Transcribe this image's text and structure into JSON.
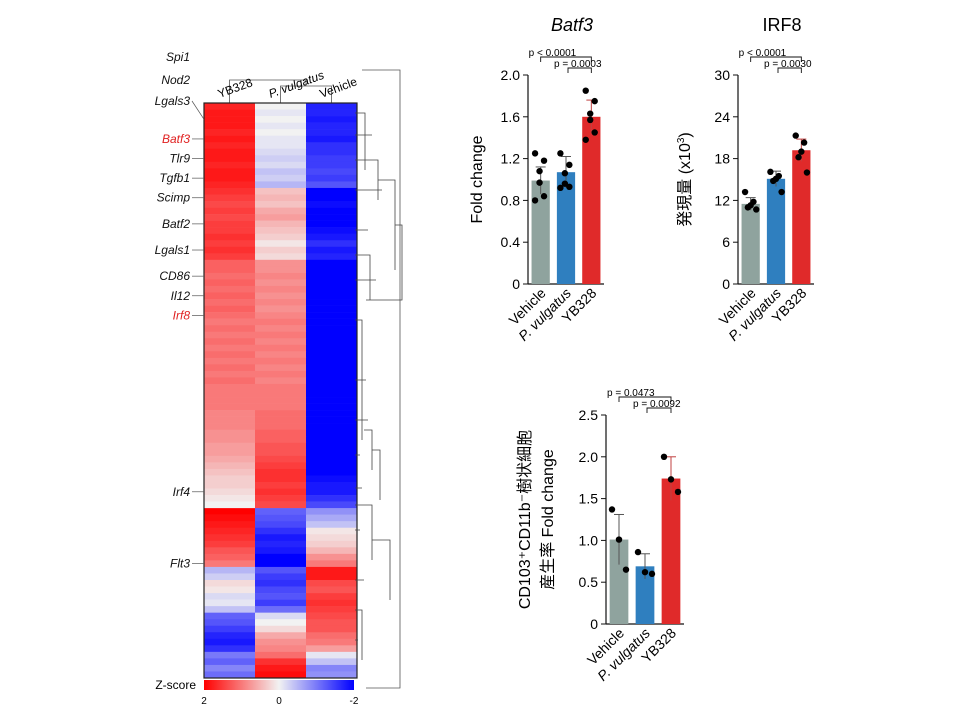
{
  "colors": {
    "vehicle": "#8fa39e",
    "pvulgatus": "#2f7fbf",
    "yb328": "#e02a2a",
    "heat_high": "#ff0000",
    "heat_mid": "#f2f2f2",
    "heat_low": "#0000ff",
    "highlight_gene": "#e02020"
  },
  "chart_data": [
    {
      "type": "heatmap",
      "columns": [
        "YB328",
        "P. vulgatus",
        "Vehicle"
      ],
      "gene_labels": [
        {
          "name": "Spi1",
          "row": 0,
          "highlight": false
        },
        {
          "name": "Nod2",
          "row": 1,
          "highlight": false
        },
        {
          "name": "Lgals3",
          "row": 2,
          "highlight": false
        },
        {
          "name": "Batf3",
          "row": 5,
          "highlight": true
        },
        {
          "name": "Tlr9",
          "row": 8,
          "highlight": false
        },
        {
          "name": "Tgfb1",
          "row": 11,
          "highlight": false
        },
        {
          "name": "Scimp",
          "row": 14,
          "highlight": false
        },
        {
          "name": "Batf2",
          "row": 18,
          "highlight": false
        },
        {
          "name": "Lgals1",
          "row": 22,
          "highlight": false
        },
        {
          "name": "CD86",
          "row": 26,
          "highlight": false
        },
        {
          "name": "Il12",
          "row": 29,
          "highlight": false
        },
        {
          "name": "Irf8",
          "row": 32,
          "highlight": true
        },
        {
          "name": "Irf4",
          "row": 59,
          "highlight": false
        },
        {
          "name": "Flt3",
          "row": 70,
          "highlight": false
        }
      ],
      "values": [
        [
          1.7,
          0.0,
          -1.7
        ],
        [
          1.8,
          -0.1,
          -1.7
        ],
        [
          1.8,
          0.0,
          -1.8
        ],
        [
          1.8,
          -0.1,
          -1.7
        ],
        [
          1.7,
          0.0,
          -1.7
        ],
        [
          1.8,
          -0.1,
          -1.8
        ],
        [
          1.7,
          -0.1,
          -1.6
        ],
        [
          1.8,
          -0.2,
          -1.6
        ],
        [
          1.8,
          -0.3,
          -1.5
        ],
        [
          1.7,
          -0.2,
          -1.5
        ],
        [
          1.8,
          -0.4,
          -1.4
        ],
        [
          1.8,
          -0.3,
          -1.5
        ],
        [
          1.7,
          -0.5,
          -1.3
        ],
        [
          1.6,
          0.4,
          -2.0
        ],
        [
          1.5,
          0.5,
          -2.0
        ],
        [
          1.4,
          0.4,
          -1.9
        ],
        [
          1.5,
          0.6,
          -2.0
        ],
        [
          1.4,
          0.7,
          -2.0
        ],
        [
          1.5,
          0.5,
          -2.0
        ],
        [
          1.5,
          0.4,
          -1.9
        ],
        [
          1.6,
          0.3,
          -1.8
        ],
        [
          1.5,
          0.1,
          -1.6
        ],
        [
          1.6,
          0.3,
          -1.8
        ],
        [
          1.5,
          0.2,
          -1.7
        ],
        [
          1.2,
          0.8,
          -2.0
        ],
        [
          1.2,
          0.8,
          -2.0
        ],
        [
          1.1,
          0.9,
          -2.0
        ],
        [
          1.2,
          0.8,
          -2.0
        ],
        [
          1.1,
          0.9,
          -2.0
        ],
        [
          1.2,
          0.8,
          -2.0
        ],
        [
          1.1,
          0.9,
          -2.0
        ],
        [
          1.2,
          0.8,
          -2.0
        ],
        [
          1.1,
          0.9,
          -2.0
        ],
        [
          1.0,
          1.0,
          -2.0
        ],
        [
          1.1,
          0.9,
          -2.0
        ],
        [
          1.0,
          1.0,
          -2.0
        ],
        [
          1.1,
          0.9,
          -2.0
        ],
        [
          1.0,
          1.0,
          -2.0
        ],
        [
          1.1,
          0.9,
          -2.0
        ],
        [
          1.0,
          1.0,
          -2.0
        ],
        [
          1.1,
          0.9,
          -2.0
        ],
        [
          1.0,
          1.0,
          -2.0
        ],
        [
          1.1,
          0.9,
          -2.0
        ],
        [
          1.0,
          1.0,
          -2.0
        ],
        [
          1.0,
          1.0,
          -2.0
        ],
        [
          1.0,
          1.0,
          -2.0
        ],
        [
          1.0,
          1.0,
          -2.0
        ],
        [
          0.9,
          1.1,
          -2.0
        ],
        [
          0.9,
          1.1,
          -2.0
        ],
        [
          0.9,
          1.1,
          -2.0
        ],
        [
          0.8,
          1.2,
          -2.0
        ],
        [
          0.8,
          1.2,
          -2.0
        ],
        [
          0.7,
          1.3,
          -2.0
        ],
        [
          0.7,
          1.3,
          -2.0
        ],
        [
          0.6,
          1.4,
          -2.0
        ],
        [
          0.5,
          1.5,
          -2.0
        ],
        [
          0.4,
          1.6,
          -2.0
        ],
        [
          0.3,
          1.6,
          -1.9
        ],
        [
          0.3,
          1.5,
          -1.8
        ],
        [
          0.2,
          1.6,
          -1.8
        ],
        [
          0.1,
          1.5,
          -1.6
        ],
        [
          0.0,
          1.4,
          -1.4
        ],
        [
          2.0,
          -1.2,
          -0.8
        ],
        [
          1.9,
          -1.3,
          -0.6
        ],
        [
          1.8,
          -1.4,
          -0.4
        ],
        [
          1.7,
          -1.6,
          0.1
        ],
        [
          1.6,
          -1.8,
          0.2
        ],
        [
          1.5,
          -1.7,
          0.3
        ],
        [
          1.3,
          -1.8,
          0.5
        ],
        [
          1.2,
          -2.0,
          0.8
        ],
        [
          1.0,
          -2.0,
          1.0
        ],
        [
          -0.5,
          -1.3,
          1.8
        ],
        [
          -0.3,
          -1.5,
          1.8
        ],
        [
          0.2,
          -1.6,
          1.4
        ],
        [
          0.1,
          -1.4,
          1.3
        ],
        [
          -0.2,
          -1.3,
          1.5
        ],
        [
          -0.1,
          -1.5,
          1.6
        ],
        [
          -0.4,
          -1.1,
          1.5
        ],
        [
          -1.2,
          -0.2,
          1.4
        ],
        [
          -1.3,
          0.0,
          1.3
        ],
        [
          -1.5,
          0.2,
          1.3
        ],
        [
          -1.7,
          0.6,
          1.1
        ],
        [
          -1.8,
          0.8,
          1.0
        ],
        [
          -1.6,
          0.9,
          0.7
        ],
        [
          -1.0,
          1.1,
          -0.1
        ],
        [
          -1.2,
          1.6,
          -0.4
        ],
        [
          -0.9,
          1.8,
          -0.9
        ],
        [
          -1.1,
          1.9,
          -0.8
        ]
      ],
      "colorbar": {
        "label": "Z-score",
        "ticks": [
          "2",
          "0",
          "-2"
        ],
        "range": [
          2,
          -2
        ]
      }
    },
    {
      "type": "bar",
      "title": "Batf3",
      "title_italic": true,
      "ylabel": "Fold change",
      "ylabel_sup": "",
      "ylim": [
        0,
        2.0
      ],
      "ticks": [
        0,
        0.4,
        0.8,
        1.2,
        1.6,
        2.0
      ],
      "tick_labels": [
        "0",
        "0.4",
        "0.8",
        "1.2",
        "1.6",
        "2.0"
      ],
      "categories": [
        "Vehicle",
        "P. vulgatus",
        "YB328"
      ],
      "values": [
        0.99,
        1.07,
        1.6
      ],
      "errors": [
        0.13,
        0.15,
        0.16
      ],
      "points": [
        [
          1.25,
          1.18,
          1.08,
          0.97,
          0.84,
          0.8
        ],
        [
          1.25,
          1.14,
          1.06,
          0.96,
          0.93,
          0.92
        ],
        [
          1.85,
          1.75,
          1.63,
          1.57,
          1.45,
          1.38
        ]
      ],
      "sig": [
        {
          "text": "p < 0.0001",
          "from": 0,
          "to": 2
        },
        {
          "text": "p = 0.0003",
          "from": 1,
          "to": 2
        }
      ]
    },
    {
      "type": "bar",
      "title": "IRF8",
      "title_italic": false,
      "ylabel": "発現量 (x10",
      "ylabel_sup": "3",
      "ylabel_tail": ")",
      "ylim": [
        0,
        30
      ],
      "ticks": [
        0,
        6,
        12,
        18,
        24,
        30
      ],
      "tick_labels": [
        "0",
        "6",
        "12",
        "18",
        "24",
        "30"
      ],
      "categories": [
        "Vehicle",
        "P. vulgatus",
        "YB328"
      ],
      "values": [
        11.5,
        15.1,
        19.2
      ],
      "errors": [
        0.9,
        1.1,
        1.6
      ],
      "points": [
        [
          13.2,
          11.8,
          11.3,
          11.0,
          10.7
        ],
        [
          16.1,
          15.5,
          15.1,
          14.8,
          13.2
        ],
        [
          21.3,
          20.3,
          19.0,
          18.2,
          16.0
        ]
      ],
      "sig": [
        {
          "text": "p < 0.0001",
          "from": 0,
          "to": 2
        },
        {
          "text": "p = 0.0030",
          "from": 1,
          "to": 2
        }
      ]
    },
    {
      "type": "bar",
      "title": "",
      "title_italic": false,
      "ylabel_line1": "CD103⁺CD11b⁻樹状細胞",
      "ylabel_line2": "産生率 Fold change",
      "ylim": [
        0,
        2.5
      ],
      "ticks": [
        0,
        0.5,
        1.0,
        1.5,
        2.0,
        2.5
      ],
      "tick_labels": [
        "0",
        "0.5",
        "1.0",
        "1.5",
        "2.0",
        "2.5"
      ],
      "categories": [
        "Vehicle",
        "P. vulgatus",
        "YB328"
      ],
      "values": [
        1.01,
        0.69,
        1.74
      ],
      "errors": [
        0.3,
        0.15,
        0.26
      ],
      "points": [
        [
          1.37,
          1.01,
          0.65
        ],
        [
          0.86,
          0.62,
          0.6
        ],
        [
          2.0,
          1.73,
          1.58
        ]
      ],
      "sig": [
        {
          "text": "p = 0.0473",
          "from": 0,
          "to": 2
        },
        {
          "text": "p = 0.0092",
          "from": 1,
          "to": 2
        }
      ]
    }
  ]
}
